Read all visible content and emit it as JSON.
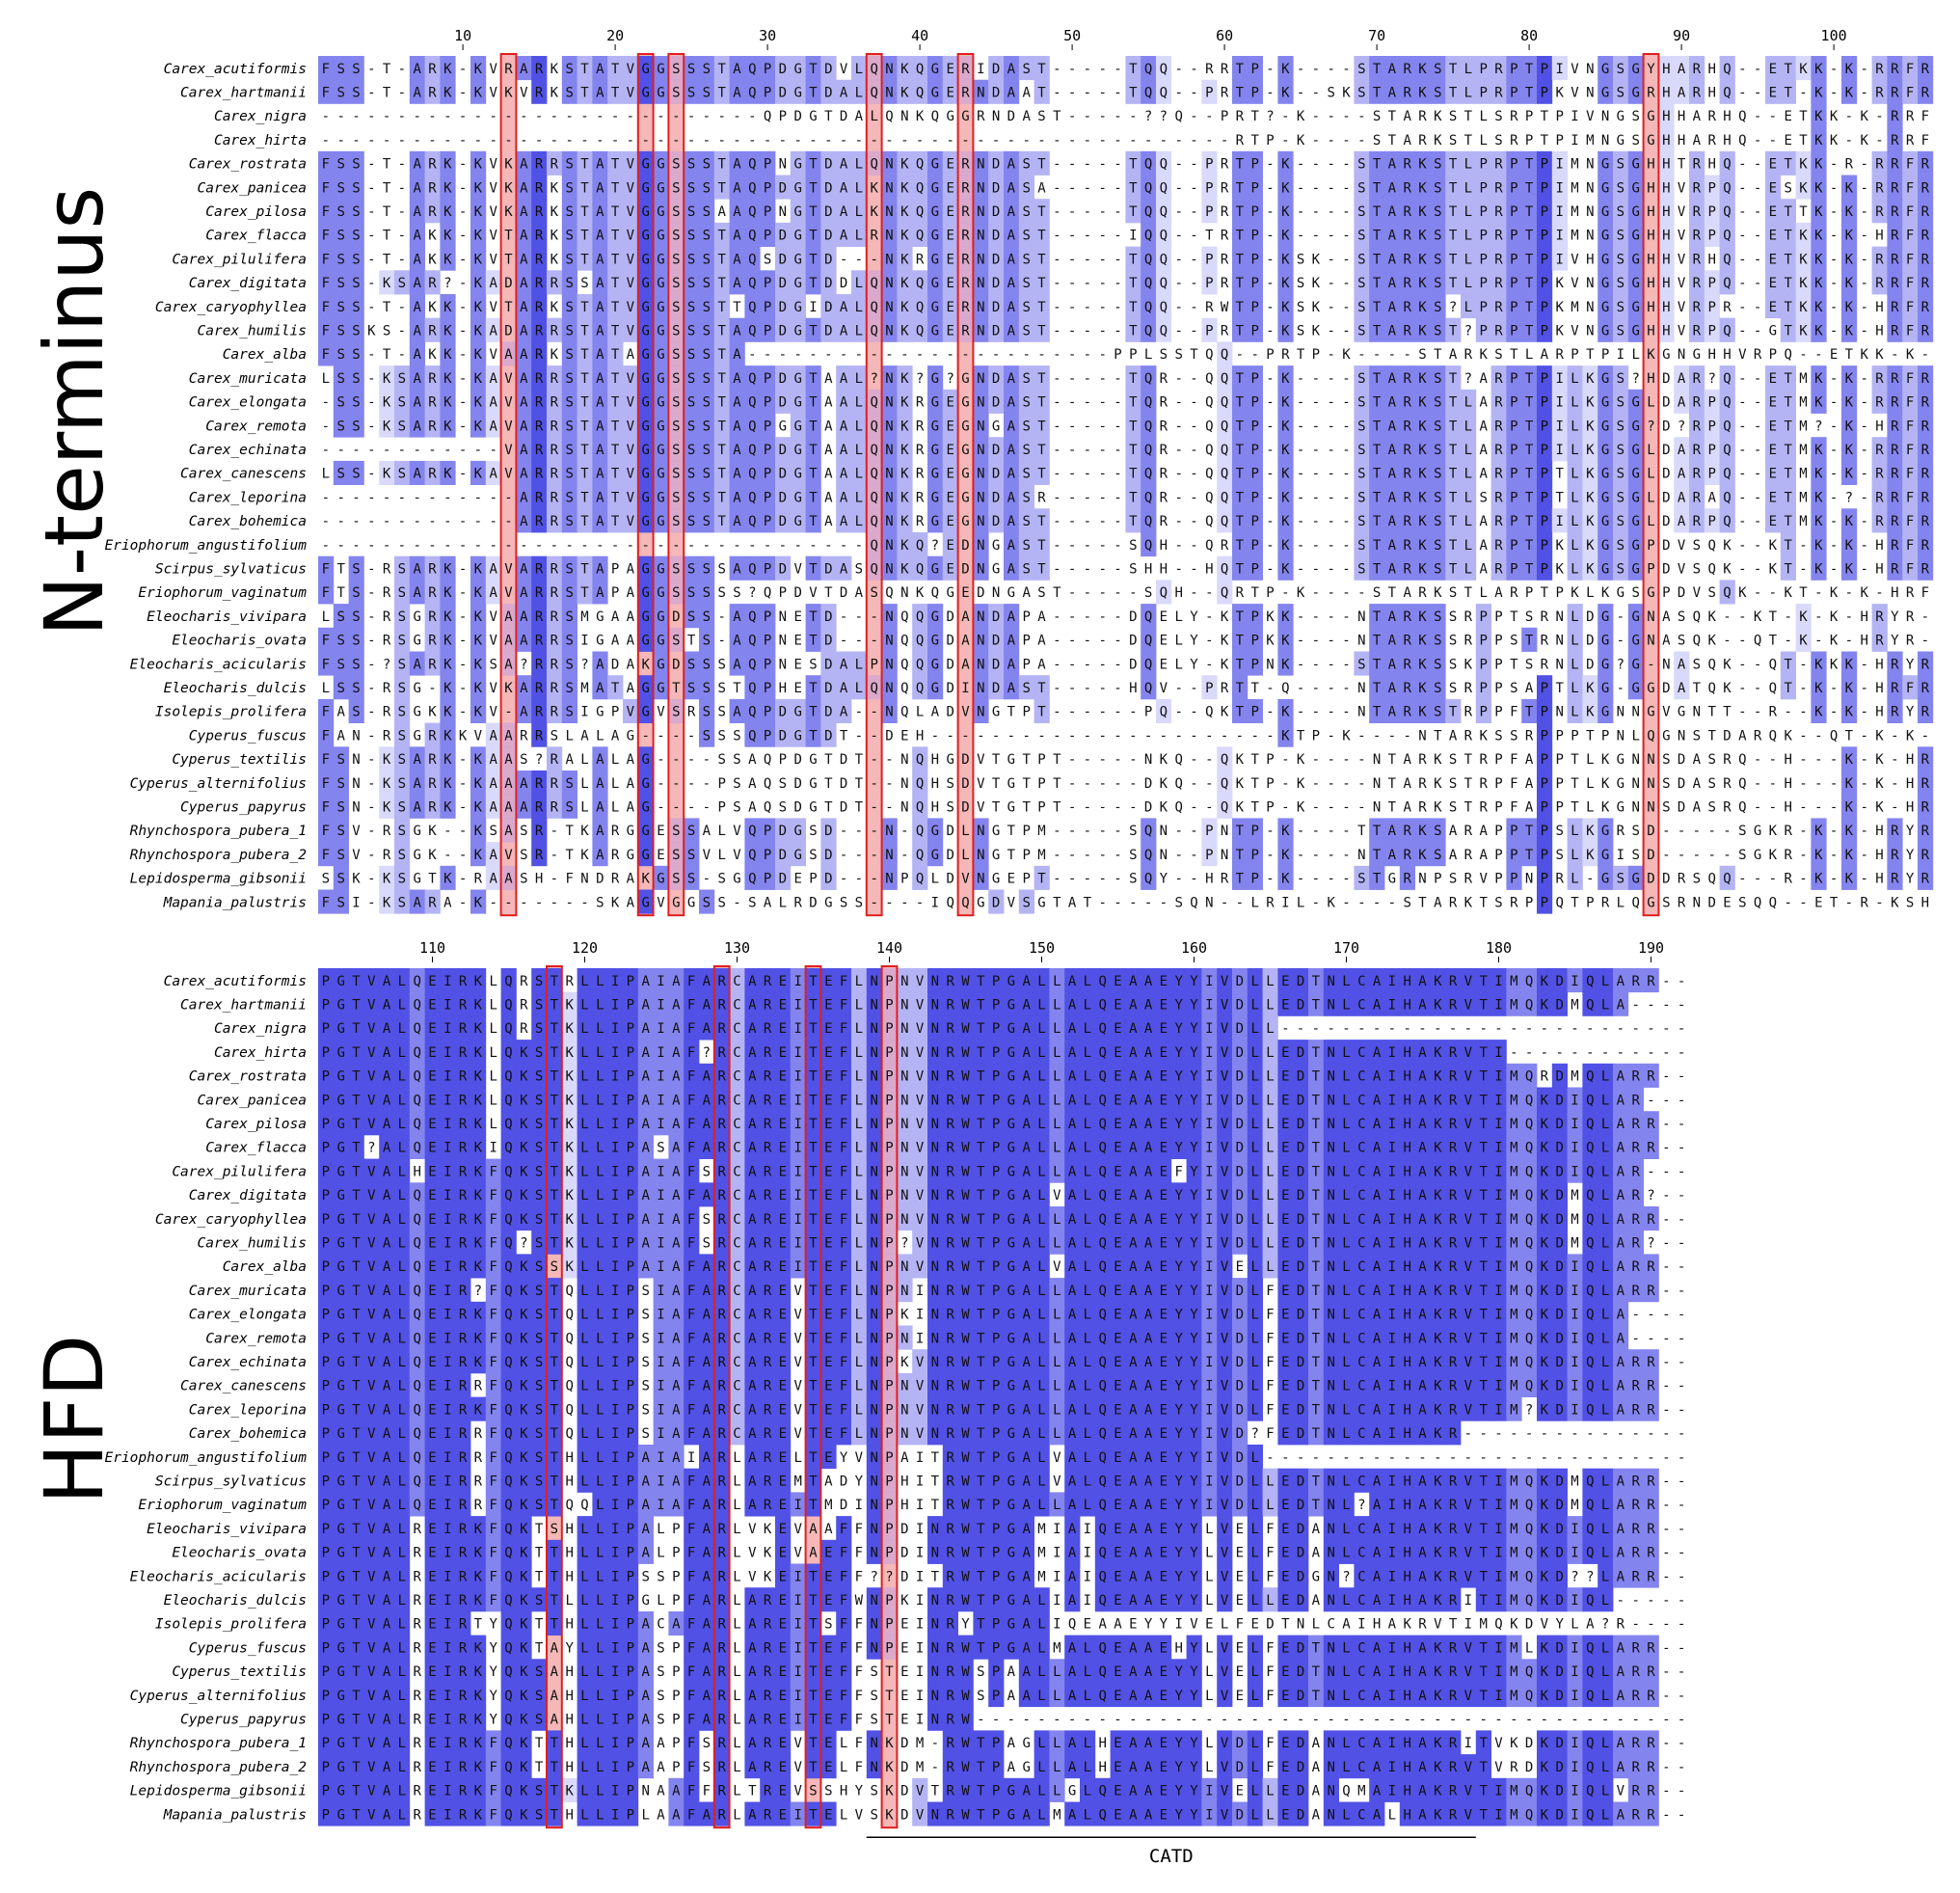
{
  "colors": {
    "level0": "#ffffff",
    "level1": "#d9d9fb",
    "level2": "#b4b4f5",
    "level3": "#8484ef",
    "level4": "#5151e6",
    "highlight_fill": "#f5b7b7",
    "highlight_border": "#e01f1f"
  },
  "panels": [
    {
      "label": "N-terminus",
      "start_number": 1,
      "ticks": [
        10,
        20,
        30,
        40,
        50,
        60,
        70,
        80,
        90,
        100
      ],
      "highlight_columns": [
        13,
        22,
        24,
        37,
        43,
        88
      ],
      "underline": null,
      "taxa": [
        "Carex_acutiformis",
        "Carex_hartmanii",
        "Carex_nigra",
        "Carex_hirta",
        "Carex_rostrata",
        "Carex_panicea",
        "Carex_pilosa",
        "Carex_flacca",
        "Carex_pilulifera",
        "Carex_digitata",
        "Carex_caryophyllea",
        "Carex_humilis",
        "Carex_alba",
        "Carex_muricata",
        "Carex_elongata",
        "Carex_remota",
        "Carex_echinata",
        "Carex_canescens",
        "Carex_leporina",
        "Carex_bohemica",
        "Eriophorum_angustifolium",
        "Scirpus_sylvaticus",
        "Eriophorum_vaginatum",
        "Eleocharis_vivipara",
        "Eleocharis_ovata",
        "Eleocharis_acicularis",
        "Eleocharis_dulcis",
        "Isolepis_prolifera",
        "Cyperus_fuscus",
        "Cyperus_textilis",
        "Cyperus_alternifolius",
        "Cyperus_papyrus",
        "Rhynchospora_pubera_1",
        "Rhynchospora_pubera_2",
        "Lepidosperma_gibsonii",
        "Mapania_palustris"
      ],
      "sequences": [
        "FSS-T-ARK-KVRARKSTATVGGSSSTAQPDGTDVLQNKQGERIDAST-----TQQ--RRTP-K----STARKSTLPRPTPIVNGSGYHARHQ--ETKK-K-RRFR",
        "FSS-T-ARK-KVKVRKSTATVGGSSSTAQPDGTDALQNKQGERNDAAT-----TQQ--PRTP-K--SKSTARKSTLPRPTPKVNGSGRHARHQ--ET-K-K-RRFR",
        "-----------------------------QPDGTDALQNKQGGRNDAST-----??Q--PRT?-K----STARKSTLSRPTPIVNGSGHHARHQ--ETKK-K-RRFR",
        "------------------------------------------------------------RTP-K----STARKSTLSRPTPIMNGSGHHARHQ--ETKK-K-RRFR",
        "FSS-T-ARK-KVKARRSTATVGGSSSTAQPNGTDALQNKQGERNDAST-----TQQ--PRTP-K----STARKSTLPRPTPIMNGSGHHTRHQ--ETKK-R-RRFR",
        "FSS-T-ARK-KVKARKSTATVGGSSSTAQPDGTDALKNKQGERNDASA-----TQQ--PRTP-K----STARKSTLPRPTPIMNGSGHHVRPQ--ESKK-K-RRFR",
        "FSS-T-ARK-KVKARKSTATVGGSSSAAQPNGTDALKNKQGERNDAST-----TQQ--PRTP-K----STARKSTLPRPTPIMNGSGHHVRPQ--ETTK-K-RRFR",
        "FSS-T-AKK-KVTARKSTATVGGSSSTAQPDGTDALRNKQGERNDAST-----IQQ--TRTP-K----STARKSTLPRPTPIMNGSGHHVRPQ--ETKK-K-HRFR",
        "FSS-T-AKK-KVTARKSTATVGGSSSTAQSDGTD---NKRGERNDAST-----TQQ--PRTP-KSK--STARKSTLPRPTPIVHGSGHHVRHQ--ETKK-K-RRFR",
        "FSS-KSAR?-KADARRSSATVGGSSSTAQPDGTDDLQNKQGERNDAST-----TQQ--PRTP-KSK--STARKSTLPRPTPKVNGSGHHVRPQ--ETKK-K-RRFR",
        "FSS-T-AKK-KVTARKSTATVGGSSSTTQPDGIDALQNKQGERNDAST-----TQQ--RWTP-KSK--STARKS?LPRPTPKMNGSGHHVRPR--ETKK-K-HRFR",
        "FSSKS-ARK-KADARRSTATVGGSSSTAQPDGTDALQNKQGERNDAST-----TQQ--PRTP-KSK--STARKST?PRPTPKVNGSGHHVRPQ--GTKK-K-HRFR",
        "FSS-T-AKK-KVAARKSTATAGGSSSTA------------------------PPLSSTQQ--PRTP-K----STARKSTLARPTPILKGNGHHVRPQ--ETKK-K-HRFR",
        "LSS-KSARK-KAVARRSTATVGGSSSTAQPDGTAAL?NK?G?GNDAST-----TQR--QQTP-K----STARKST?ARPTPILKGS?HDAR?Q--ETMK-K-RRFR",
        "-SS-KSARK-KAVARRSTATVGGSSSTAQPDGTAALQNKRGEGNDAST-----TQR--QQTP-K----STARKSTLARPTPILKGSGLDARPQ--ETMK-K-RRFR",
        "-SS-KSARK-KAVARRSTATVGGSSSTAQPGGTAALQNKRGEGNGAST-----TQR--QQTP-K----STARKSTLARPTPILKGSG?D?RPQ--ETM?-K-HRFR",
        "------------VARRSTATVGGSSSTAQPDGTAALQNKRGEGNDAST-----TQR--QQTP-K----STARKSTLARPTPILKGSGLDARPQ--ETMK-K-RRFR",
        "LSS-KSARK-KAVARRSTATVGGSSSTAQPDGTAALQNKRGEGNDAST-----TQR--QQTP-K----STARKSTLARPTPTLKGSGLDARPQ--ETMK-K-RRFR",
        "-------------ARRSTATVGGSSSTAQPDGTAALQNKRGEGNDASR-----TQR--QQTP-K----STARKSTLSRPTPTLKGSGLDARAQ--ETMK-?-RRFR",
        "-------------ARRSTATVGGSSSTAQPDGTAALQNKRGEGNDAST-----TQR--QQTP-K----STARKSTLARPTPILKGSGLDARPQ--ETMK-K-RRFR",
        "------------------------------------QNKQ?EDNGAST-----SQH--QRTP-K----STARKSTLARPTPKLKGSGPDVSQK--KT-K-K-HRFR",
        "FTS-RSARK-KAVARRSTAPAGGSSSSAQPDVTDASQNKQGEDNGAST-----SHH--HQTP-K----STARKSTLARPTPKLKGSGPDVSQK--KT-K-K-HRFR",
        "FTS-RSARK-KAVARRSTAPAGGSSSSS?QPDVTDASQNKQGEDNGAST-----SQH--QRTP-K----STARKSTLARPTPKLKGSGPDVSQK--KT-K-K-HRFR",
        "LSS-RSGRK-KVAARRSMGAAGGDSS-AQPNETD---NQQGDANDAPA-----DQELY-KTPKK----NTARKSSRPPTSRNLDG-GNASQK--KT-K-K-HRYR",
        "FSS-RSGRK-KVAARRSIGAAGGSTS-AQPNETD---NQQGDANDAPA-----DQELY-KTPKK----NTARKSSRPPSTRNLDG-GNASQK--QT-K-K-HRYR",
        "FSS-?SARK-KSA?RRS?ADAKGDSSSAQPNESDALPNQQGDANDAPA-----DQELY-KTPNK----STARKSSKPPTSRNLDG?G-NASQK--QT-KKK-HRYR",
        "LSS-RSG-K-KVKARRSMATAGGTSSSTQPHETDALQNQQGDINDAST-----HQV--PRTT-Q----NTARKSSRPPSAPTLKG-GGDATQK--QT-K-K-HRFR",
        "FAS-RSGKK-KV-ARRSIGPVGVSRSSAQPDGTDA--NQLADVNGTPT------PQ--QKTP-K----NTARKSTRPPFTPNLKGNNGVGNTT--R--K-K-HRYR",
        "FAN-RSGRKKVAARRSLALAG----SSSQPDGTDT--DEH-----------------------KTP-K----NTARKSSRPPPTPNLQGNSTDARQK--QT-K-K-HRYR",
        "FSN-KSARK-KAAS?RALALAG----SSAQPDGTDT--NQHGDVTGTPT-----NKQ--QKTP-K----NTARKSTRPFAPPTLKGNNSDASRQ--H---K-K-HRYR",
        "FSN-KSARK-KAAARRSLALAG----PSAQSDGTDT--NQHSDVTGTPT-----DKQ--QKTP-K----NTARKSTRPFAPPTLKGNNSDASRQ--H---K-K-HRYR",
        "FSN-KSARK-KAAARRSLALAG----PSAQSDGTDT--NQHSDVTGTPT-----DKQ--QKTP-K----NTARKSTRPFAPPTLKGNNSDASRQ--H---K-K-HRYR",
        "FSV-RSGK--KSASR-TKARGGESSALVQPDGSD---N-QGDLNGTPM-----SQN--PNTP-K----TTARKSARAPPTPSLKGRSD-----SGKR-K-K-HRYR",
        "FSV-RSGK--KAVSR-TKARGGESSVLVQPDGSD---N-QGDLNGTPM-----SQN--PNTP-K----NTARKSARAPPTPSLKGISD-----SGKR-K-K-HRYR",
        "SSK-KSGTK-RAASH-FNDRAKGSS-SGQPDEPD---NPQLDVNGEPT-----SQY--HRTP-K----STGRNPSRVPPNPRL-GSGDDRSQQ---R-K-K-HRYR",
        "FSI-KSARA-K-------SKAGVGGSS-SALRDGSS----IQQGDVSGTAT-----SQN--LRIL-K----STARKTSRPPQTPRLQGSRNDESQQ--ET-R-KSHRYR"
      ]
    },
    {
      "label": "HFD",
      "start_number": 103,
      "ticks": [
        110,
        120,
        130,
        140,
        150,
        160,
        170,
        180,
        190
      ],
      "highlight_columns": [
        118,
        129,
        135,
        140
      ],
      "underline": {
        "label": "CATD",
        "from": 139,
        "to": 179
      },
      "taxa": [
        "Carex_acutiformis",
        "Carex_hartmanii",
        "Carex_nigra",
        "Carex_hirta",
        "Carex_rostrata",
        "Carex_panicea",
        "Carex_pilosa",
        "Carex_flacca",
        "Carex_pilulifera",
        "Carex_digitata",
        "Carex_caryophyllea",
        "Carex_humilis",
        "Carex_alba",
        "Carex_muricata",
        "Carex_elongata",
        "Carex_remota",
        "Carex_echinata",
        "Carex_canescens",
        "Carex_leporina",
        "Carex_bohemica",
        "Eriophorum_angustifolium",
        "Scirpus_sylvaticus",
        "Eriophorum_vaginatum",
        "Eleocharis_vivipara",
        "Eleocharis_ovata",
        "Eleocharis_acicularis",
        "Eleocharis_dulcis",
        "Isolepis_prolifera",
        "Cyperus_fuscus",
        "Cyperus_textilis",
        "Cyperus_alternifolius",
        "Cyperus_papyrus",
        "Rhynchospora_pubera_1",
        "Rhynchospora_pubera_2",
        "Lepidosperma_gibsonii",
        "Mapania_palustris"
      ],
      "sequences": [
        "PGTVALQEIRKLQRSTRLLIPAIAFARCAREITEFLNPNVNRWTPGALLALQEAAEYYIVDLLEDTNLCAIHAKRVTIMQKDIQLARR",
        "PGTVALQEIRKLQRSTKLLIPAIAFARCAREITEFLNPNVNRWTPGALLALQEAAEYYIVDLLEDTNLCAIHAKRVTIMQKDMQLA--",
        "PGTVALQEIRKLQRSTKLLIPAIAFARCAREITEFLNPNVNRWTPGALLALQEAAEYYIVDLL--------------------------",
        "PGTVALQEIRKLQKSTKLLIPAIAF?RCAREITEFLNPNVNRWTPGALLALQEAAEYYIVDLLEDTNLCAIHAKRVTI----------",
        "PGTVALQEIRKLQKSTKLLIPAIAFARCAREITEFLNPNVNRWTPGALLALQEAAEYYIVDLLEDTNLCAIHAKRVTIMQRDMQLARR",
        "PGTVALQEIRKLQKSTKLLIPAIAFARCAREITEFLNPNVNRWTPGALLALQEAAEYYIVDLLEDTNLCAIHAKRVTIMQKDIQLAR-",
        "PGTVALQEIRKLQKSTKLLIPAIAFARCAREITEFLNPNVNRWTPGALLALQEAAEYYIVDLLEDTNLCAIHAKRVTIMQKDIQLARR",
        "PGT?ALQEIRKIQKSTKLLIPASAFARCAREITEFLNPNVNRWTPGALLALQEAAEYYIVDLLEDTNLCAIHAKRVTIMQKDIQLARR",
        "PGTVALHEIRKFQKSTKLLIPAIAFSRCAREITEFLNPNVNRWTPGALLALQEAAEFYIVDLLEDTNLCAIHAKRVTIMQKDIQLAR-",
        "PGTVALQEIRKFQKSTKLLIPAIAFARCAREITEFLNPNVNRWTPGALVALQEAAEYYIVDLLEDTNLCAIHAKRVTIMQKDMQLAR?",
        "PGTVALQEIRKFQKSTKLLIPAIAFSRCAREITEFLNPNVNRWTPGALLALQEAAEYYIVDLLEDTNLCAIHAKRVTIMQKDMQLARR",
        "PGTVALQEIRKFQ?STKLLIPAIAFSRCAREITEFLNP?VNRWTPGALLALQEAAEYYIVDLLEDTNLCAIHAKRVTIMQKDMQLAR?",
        "PGTVALQEIRKFQKSSKLLIPAIAFARCAREITEFLNPNVNRWTPGALVALQEAAEYYIVELLEDTNLCAIHAKRVTIMQKDIQLARR",
        "PGTVALQEIR?FQKSTQLLIPSIAFARCAREVTEFLNPNINRWTPGALLALQEAAEYYIVDLFEDTNLCAIHAKRVTIMQKDIQLARR",
        "PGTVALQEIRKFQKSTQLLIPSIAFARCAREVTEFLNPKINRWTPGALLALQEAAEYYIVDLFEDTNLCAIHAKRVTIMQKDIQLA--",
        "PGTVALQEIRKFQKSTQLLIPSIAFARCAREVTEFLNPNINRWTPGALLALQEAAEYYIVDLFEDTNLCAIHAKRVTIMQKDIQLA--",
        "PGTVALQEIRKFQKSTQLLIPSIAFARCAREVTEFLNPKVNRWTPGALLALQEAAEYYIVDLFEDTNLCAIHAKRVTIMQKDIQLARR",
        "PGTVALQEIRRFQKSTQLLIPSIAFARCAREVTEFLNPNVNRWTPGALLALQEAAEYYIVDLFEDTNLCAIHAKRVTIMQKDIQLARR",
        "PGTVALQEIRKFQKSTQLLIPSIAFARCAREVTEFLNPNVNRWTPGALLALQEAAEYYIVDLFEDTNLCAIHAKRVTIM?KDIQLARR",
        "PGTVALQEIRRFQKSTQLLIPSIAFARCAREVTEFLNPNVNRWTPGALLALQEAAEYYIVD?FEDTNLCAIHAKR-------------",
        "PGTVALQEIRRFQKSTHLLIPAIAIARLARELTEYVNPAITRWTPGALVALQEAAEYYIVDL--------------------------",
        "PGTVALQEIRRFQKSTHLLIPAIAFARLAREMTADYNPHITRWTPGALVALQEAAEYYIVDLLEDTNLCAIHAKRVTIMQKDMQLARR",
        "PGTVALQEIRRFQKSTQQLIPAIAFARLAREITMDINPHITRWTPGALLALQEAAEYYIVDLLEDTNL?AIHAKRVTIMQKDMQLARR",
        "PGTVALREIRKFQKTSHLLIPALPFARLVKEVAAFFNPDINRWTPGAMIAIQEAAEYYLVELFEDANLCAIHAKRVTIMQKDIQLARR",
        "PGTVALREIRKFQKTTHLLIPALPFARLVKEVAEFFNPDINRWTPGAMIAIQEAAEYYLVELFEDANLCAIHAKRVTIMQKDIQLARR",
        "PGTVALREIRKFQKTTHLLIPSSPFARLVKEITEFF??DITRWTPGAMIAIQEAAEYYLVELFEDGN?CAIHAKRVTIMQKD??LARR",
        "PGTVALREIRKFQKSTLLLIPGLPFARLAREITEFWNPKINRWTPGALIAIQEAAEYYLVELLEDANLCAIHAKRITIMQKDIQL---",
        "PGTVALREIRTYQKTTHLLIPACAFARLAREITSFFNPEINRYTPGALIQEAAEYYIVELFEDTNLCAIHAKRVTIMQKDVYLA?R",
        "PGTVALREIRKYQKTAYLLIPASPFARLAREITEFFNPEINRWTPGALMALQEAAEHYLVELFEDTNLCAIHAKRVTIMLKDIQLARR",
        "PGTVALREIRKYQKSAHLLIPASPFARLAREITEFFSTEINRWSPAALLALQEAAEYYLVELFEDTNLCAIHAKRVTIMQKDIQLARR",
        "PGTVALREIRKYQKSAHLLIPASPFARLAREITEFFSTEINRWSPAALLALQEAAEYYLVELFEDTNLCAIHAKRVTIMQKDIQLARR",
        "PGTVALREIRKYQKSAHLLIPASPFARLAREITEFFSTEINRW-----------------------------------------------",
        "PGTVALREIRKFQKTTHLLIPAAPFSRLAREVTELFNKDM-RWTPAGLLALHEAAEYYLVDLFEDANLCAIHAKRITVKDKDIQLARR",
        "PGTVALREIRKFQKTTHLLIPAAPFSRLAREVTELFNKDM-RWTPAGLLALHEAAEYYLVDLFEDANLCAIHAKRVTVRDKDIQLARR",
        "PGTVALREIRKFQKSTKLLIPNAAFFRLTREVSSHYSKDVTRWTPGALLGLQEAAEYYIVELLEDANQMAIHAKRVTIMQKDIQLVRR",
        "PGTVALREIRKFQKSTHLLIPLAAFARLAREITELVSKDVNRWTPGALMALQEAAEYYIVDLLEDANLCALHAKRVTIMQKDIQLARR"
      ]
    }
  ]
}
